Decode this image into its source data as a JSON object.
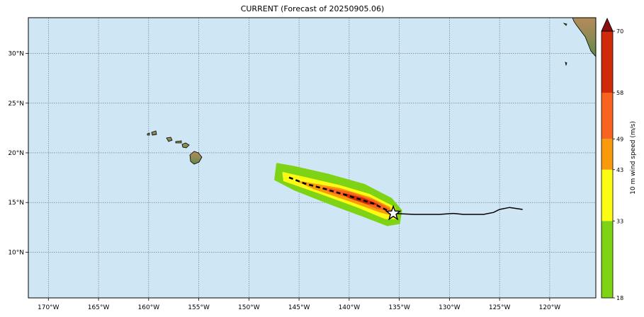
{
  "title": "CURRENT (Forecast of 20250905.06)",
  "colors": {
    "ocean": "#cfe6f5",
    "grid": "#5a6e7a",
    "land_low": "#7a9a5a",
    "land_high": "#b58a5a",
    "track": "#000000",
    "forecast_line": "#000000"
  },
  "axes": {
    "lon_labels": [
      "170°W",
      "165°W",
      "160°W",
      "155°W",
      "150°W",
      "145°W",
      "140°W",
      "135°W",
      "130°W",
      "125°W",
      "120°W"
    ],
    "lon_values": [
      -170,
      -165,
      -160,
      -155,
      -150,
      -145,
      -140,
      -135,
      -130,
      -125,
      -120
    ],
    "lat_labels": [
      "30°N",
      "25°N",
      "20°N",
      "15°N",
      "10°N"
    ],
    "lat_values": [
      30,
      25,
      20,
      15,
      10
    ],
    "lon_range": [
      -172,
      -115.4
    ],
    "lat_range": [
      5.4,
      33.6
    ]
  },
  "colorbar": {
    "label": "10 m wind speed (m/s)",
    "ticks": [
      "70",
      "58",
      "49",
      "43",
      "33",
      "18"
    ],
    "bands": [
      {
        "from": 18,
        "to": 33,
        "color": "#7ed314"
      },
      {
        "from": 33,
        "to": 43,
        "color": "#fbfb14"
      },
      {
        "from": 43,
        "to": 49,
        "color": "#f89a0c"
      },
      {
        "from": 49,
        "to": 58,
        "color": "#f86420"
      },
      {
        "from": 58,
        "to": 70,
        "color": "#cf2a0a"
      }
    ],
    "extend_color": "#8a0e0e"
  },
  "storm": {
    "current_position": {
      "lon": -135.6,
      "lat": 13.9
    },
    "past_track": [
      {
        "lon": -122.7,
        "lat": 14.3
      },
      {
        "lon": -124.0,
        "lat": 14.5
      },
      {
        "lon": -125.0,
        "lat": 14.3
      },
      {
        "lon": -125.6,
        "lat": 14.0
      },
      {
        "lon": -126.6,
        "lat": 13.8
      },
      {
        "lon": -128.6,
        "lat": 13.8
      },
      {
        "lon": -129.6,
        "lat": 13.9
      },
      {
        "lon": -131.0,
        "lat": 13.8
      },
      {
        "lon": -133.5,
        "lat": 13.8
      },
      {
        "lon": -135.6,
        "lat": 13.9
      }
    ],
    "forecast_track": [
      {
        "lon": -135.6,
        "lat": 13.9
      },
      {
        "lon": -137.6,
        "lat": 14.9
      },
      {
        "lon": -139.8,
        "lat": 15.6
      },
      {
        "lon": -142.2,
        "lat": 16.3
      },
      {
        "lon": -144.4,
        "lat": 16.9
      },
      {
        "lon": -146.2,
        "lat": 17.6
      }
    ],
    "wind_swath": [
      {
        "threshold": 18,
        "points": [
          {
            "lon": -147.2,
            "lat": 18.9
          },
          {
            "lon": -145.5,
            "lat": 18.6
          },
          {
            "lon": -142,
            "lat": 17.8
          },
          {
            "lon": -138.5,
            "lat": 16.8
          },
          {
            "lon": -135.8,
            "lat": 15.4
          },
          {
            "lon": -134.8,
            "lat": 14.2
          },
          {
            "lon": -135.0,
            "lat": 12.9
          },
          {
            "lon": -136.2,
            "lat": 12.7
          },
          {
            "lon": -138.5,
            "lat": 13.6
          },
          {
            "lon": -142,
            "lat": 14.9
          },
          {
            "lon": -145.5,
            "lat": 16.3
          },
          {
            "lon": -147.4,
            "lat": 17.3
          }
        ]
      },
      {
        "threshold": 33,
        "points": [
          {
            "lon": -146.6,
            "lat": 18.0
          },
          {
            "lon": -144,
            "lat": 17.4
          },
          {
            "lon": -141,
            "lat": 16.7
          },
          {
            "lon": -138,
            "lat": 15.8
          },
          {
            "lon": -135.5,
            "lat": 14.5
          },
          {
            "lon": -135.2,
            "lat": 13.4
          },
          {
            "lon": -136.4,
            "lat": 13.4
          },
          {
            "lon": -139,
            "lat": 14.5
          },
          {
            "lon": -142.5,
            "lat": 15.8
          },
          {
            "lon": -146.5,
            "lat": 17.2
          }
        ]
      },
      {
        "threshold": 43,
        "points": [
          {
            "lon": -145,
            "lat": 17.1
          },
          {
            "lon": -141,
            "lat": 16.4
          },
          {
            "lon": -138,
            "lat": 15.5
          },
          {
            "lon": -136,
            "lat": 14.5
          },
          {
            "lon": -135.6,
            "lat": 13.7
          },
          {
            "lon": -137,
            "lat": 14.1
          },
          {
            "lon": -140,
            "lat": 15.2
          },
          {
            "lon": -143.5,
            "lat": 16.4
          }
        ]
      },
      {
        "threshold": 49,
        "points": [
          {
            "lon": -142.5,
            "lat": 16.5
          },
          {
            "lon": -140,
            "lat": 16.0
          },
          {
            "lon": -137.6,
            "lat": 15.2
          },
          {
            "lon": -136,
            "lat": 14.3
          },
          {
            "lon": -137.2,
            "lat": 14.4
          },
          {
            "lon": -139.5,
            "lat": 15.4
          },
          {
            "lon": -142,
            "lat": 16.1
          }
        ]
      },
      {
        "threshold": 58,
        "points": [
          {
            "lon": -140.6,
            "lat": 15.9
          },
          {
            "lon": -138.6,
            "lat": 15.4
          },
          {
            "lon": -137.2,
            "lat": 14.8
          },
          {
            "lon": -138.2,
            "lat": 14.9
          },
          {
            "lon": -140,
            "lat": 15.5
          }
        ]
      }
    ]
  }
}
